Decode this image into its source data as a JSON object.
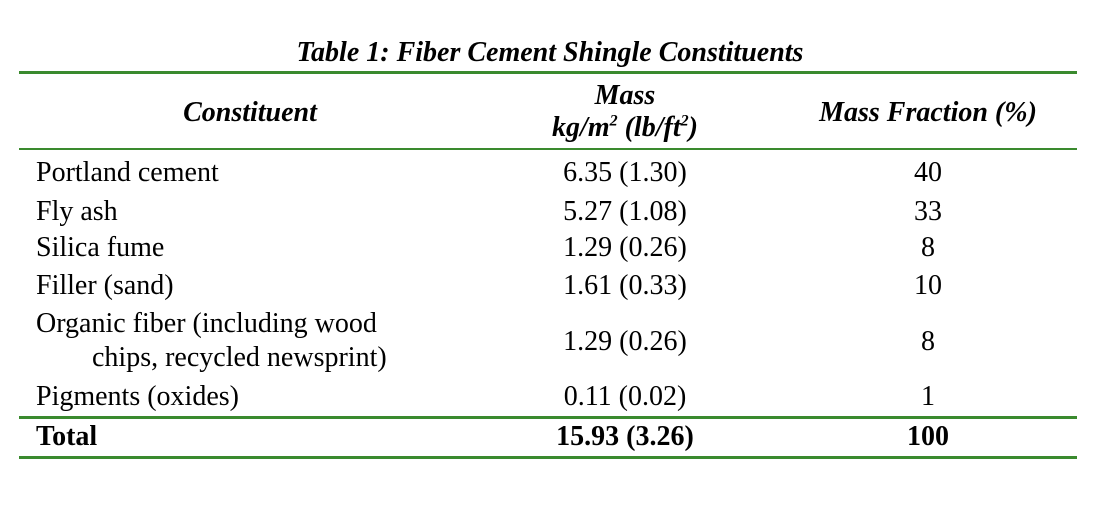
{
  "table": {
    "caption": "Table 1: Fiber Cement Shingle Constituents",
    "headers": {
      "constituent": "Constituent",
      "mass_line1": "Mass",
      "mass_unit_kg": "kg/m",
      "mass_exp_1": "2",
      "mass_unit_lb": " (lb/ft",
      "mass_exp_2": "2",
      "mass_close": ")",
      "fraction": "Mass Fraction (%)"
    },
    "rows": [
      {
        "constituent": "Portland cement",
        "mass": "6.35 (1.30)",
        "fraction": "40"
      },
      {
        "constituent": "Fly ash",
        "mass": "5.27 (1.08)",
        "fraction": "33"
      },
      {
        "constituent": "Silica fume",
        "mass": "1.29 (0.26)",
        "fraction": "8"
      },
      {
        "constituent": "Filler (sand)",
        "mass": "1.61 (0.33)",
        "fraction": "10"
      },
      {
        "constituent_line1": "Organic fiber (including wood",
        "constituent_line2": "chips, recycled newsprint)",
        "mass": "1.29 (0.26)",
        "fraction": "8"
      },
      {
        "constituent": "Pigments (oxides)",
        "mass": "0.11 (0.02)",
        "fraction": "1"
      }
    ],
    "total": {
      "label": "Total",
      "mass": "15.93 (3.26)",
      "fraction": "100"
    },
    "rule_color": "#3a8a2e"
  }
}
